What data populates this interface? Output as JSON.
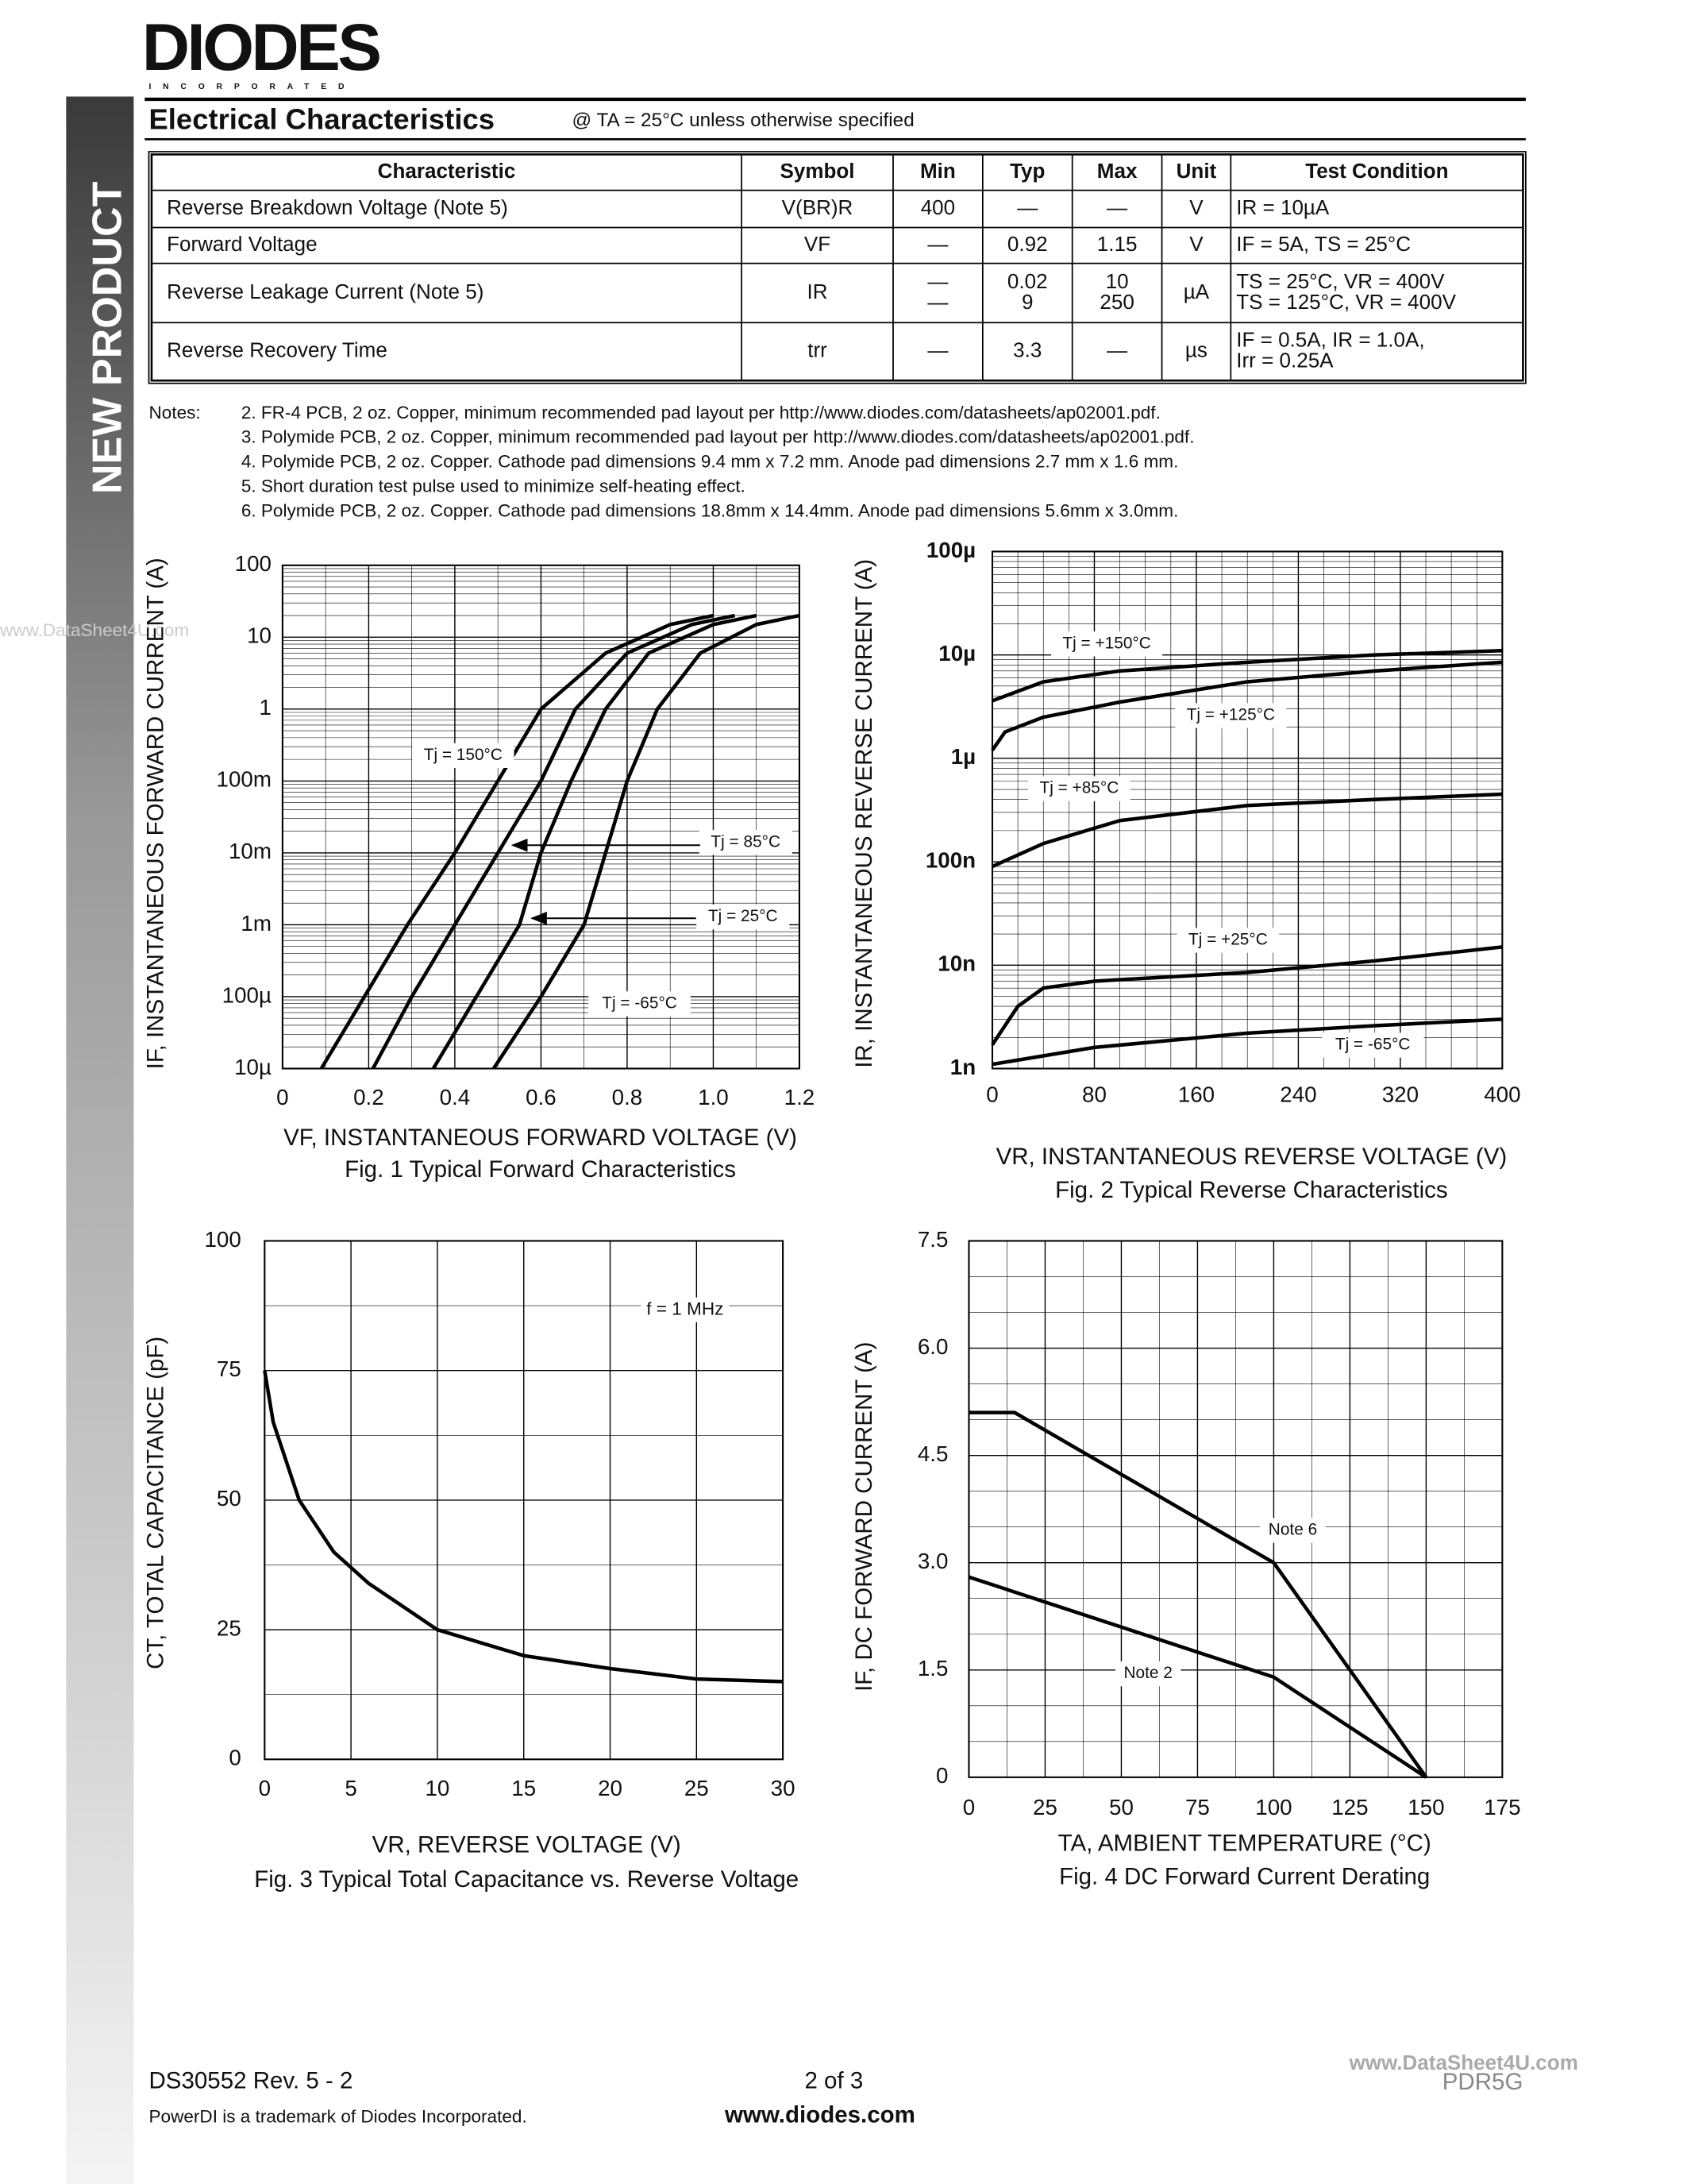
{
  "header": {
    "logo": "DIODES",
    "logo_sub": "INCORPORATED",
    "side_banner": "NEW PRODUCT"
  },
  "section": {
    "title": "Electrical Characteristics",
    "subtitle": "@ TA = 25°C unless otherwise specified"
  },
  "table": {
    "columns": [
      "Characteristic",
      "Symbol",
      "Min",
      "Typ",
      "Max",
      "Unit",
      "Test Condition"
    ],
    "rows": [
      [
        "Reverse Breakdown Voltage (Note 5)",
        "V(BR)R",
        "400",
        "—",
        "—",
        "V",
        "IR = 10µA"
      ],
      [
        "Forward Voltage",
        "VF",
        "—",
        "0.92",
        "1.15",
        "V",
        "IF = 5A, TS = 25°C"
      ],
      [
        "Reverse Leakage Current (Note 5)",
        "IR",
        [
          "—",
          "—"
        ],
        [
          "0.02",
          "9"
        ],
        [
          "10",
          "250"
        ],
        "µA",
        [
          "TS =  25°C, VR = 400V",
          "TS = 125°C, VR = 400V"
        ]
      ],
      [
        "Reverse Recovery Time",
        "trr",
        "—",
        "3.3",
        "—",
        "µs",
        [
          "IF = 0.5A, IR = 1.0A,",
          "Irr = 0.25A"
        ]
      ]
    ]
  },
  "notes": {
    "label": "Notes:",
    "items": [
      "2.  FR-4 PCB, 2 oz. Copper, minimum recommended pad layout per http://www.diodes.com/datasheets/ap02001.pdf.",
      "3.  Polymide PCB, 2 oz. Copper, minimum recommended pad layout per http://www.diodes.com/datasheets/ap02001.pdf.",
      "4.  Polymide PCB, 2 oz. Copper. Cathode pad dimensions 9.4 mm x 7.2 mm. Anode pad dimensions 2.7 mm x 1.6 mm.",
      "5.  Short duration test pulse used to minimize self-heating effect.",
      "6.  Polymide PCB, 2 oz. Copper.  Cathode pad dimensions 18.8mm x 14.4mm.  Anode pad dimensions 5.6mm x 3.0mm."
    ]
  },
  "chart_data": [
    {
      "type": "line",
      "title": "Fig. 1  Typical Forward Characteristics",
      "x_label": "VF, INSTANTANEOUS FORWARD VOLTAGE (V)",
      "y_label": "IF, INSTANTANEOUS FORWARD CURRENT (A)",
      "log_y": true,
      "grid": true,
      "xlim": [
        0,
        1.2
      ],
      "xticks": [
        0,
        0.2,
        0.4,
        0.6,
        0.8,
        {
          "value": 1,
          "label": "1.0"
        },
        1.2
      ],
      "ylim": [
        1e-05,
        100
      ],
      "yticks": [
        {
          "value": 1e-05,
          "label": "10µ"
        },
        {
          "value": 0.0001,
          "label": "100µ"
        },
        {
          "value": 0.001,
          "label": "1m"
        },
        {
          "value": 0.01,
          "label": "10m"
        },
        {
          "value": 0.1,
          "label": "100m"
        },
        1,
        10,
        100
      ],
      "series": [
        {
          "name": "Tj = 150°C",
          "color": "#000000",
          "x": [
            0.09,
            0.19,
            0.29,
            0.4,
            0.5,
            0.6,
            0.75,
            0.9,
            1.0
          ],
          "values": [
            1e-05,
            0.0001,
            0.001,
            0.01,
            0.1,
            1,
            6,
            15,
            20
          ]
        },
        {
          "name": "Tj = 85°C",
          "color": "#000000",
          "x": [
            0.21,
            0.3,
            0.4,
            0.5,
            0.6,
            0.68,
            0.8,
            0.95,
            1.05
          ],
          "values": [
            1e-05,
            0.0001,
            0.001,
            0.01,
            0.1,
            1,
            6,
            15,
            20
          ]
        },
        {
          "name": "Tj = 25°C",
          "color": "#000000",
          "x": [
            0.35,
            0.45,
            0.55,
            0.6,
            0.67,
            0.75,
            0.85,
            1.0,
            1.1
          ],
          "values": [
            1e-05,
            0.0001,
            0.001,
            0.01,
            0.1,
            1,
            6,
            15,
            20
          ]
        },
        {
          "name": "Tj = -65°C",
          "color": "#000000",
          "x": [
            0.49,
            0.6,
            0.7,
            0.75,
            0.8,
            0.87,
            0.97,
            1.1,
            1.2
          ],
          "values": [
            1e-05,
            0.0001,
            0.001,
            0.01,
            0.1,
            1,
            6,
            15,
            20
          ]
        }
      ]
    },
    {
      "type": "line",
      "title": "Fig. 2  Typical Reverse Characteristics",
      "x_label": "VR, INSTANTANEOUS REVERSE VOLTAGE (V)",
      "y_label": "IR, INSTANTANEOUS REVERSE CURRENT (A)",
      "log_y": true,
      "grid": true,
      "xlim": [
        0,
        400
      ],
      "xticks": [
        0,
        80,
        160,
        240,
        320,
        400
      ],
      "ylim": [
        1e-09,
        0.0001
      ],
      "yticks": [
        {
          "value": 1e-09,
          "label": "1n"
        },
        {
          "value": 1e-08,
          "label": "10n"
        },
        {
          "value": 1e-07,
          "label": "100n"
        },
        {
          "value": 1e-06,
          "label": "1µ"
        },
        {
          "value": 1e-05,
          "label": "10µ"
        },
        {
          "value": 0.0001,
          "label": "100µ"
        }
      ],
      "series": [
        {
          "name": "Tj = +150°C",
          "color": "#000000",
          "x": [
            0,
            40,
            100,
            200,
            300,
            400
          ],
          "values": [
            3.6e-06,
            5.5e-06,
            7e-06,
            8.5e-06,
            1e-05,
            1.1e-05
          ]
        },
        {
          "name": "Tj = +125°C",
          "color": "#000000",
          "x": [
            0,
            10,
            40,
            100,
            200,
            300,
            400
          ],
          "values": [
            1.2e-06,
            1.8e-06,
            2.5e-06,
            3.5e-06,
            5.5e-06,
            7e-06,
            8.5e-06
          ]
        },
        {
          "name": "Tj = +85°C",
          "color": "#000000",
          "x": [
            0,
            40,
            100,
            200,
            300,
            400
          ],
          "values": [
            9e-08,
            1.5e-07,
            2.5e-07,
            3.5e-07,
            4e-07,
            4.5e-07
          ]
        },
        {
          "name": "Tj = +25°C",
          "color": "#000000",
          "x": [
            0,
            20,
            40,
            80,
            200,
            300,
            400
          ],
          "values": [
            1.7e-09,
            4e-09,
            6e-09,
            7e-09,
            8.5e-09,
            1.1e-08,
            1.5e-08
          ]
        },
        {
          "name": "Tj = -65°C",
          "color": "#000000",
          "x": [
            0,
            80,
            200,
            300,
            400
          ],
          "values": [
            1.1e-09,
            1.6e-09,
            2.2e-09,
            2.6e-09,
            3e-09
          ]
        }
      ]
    },
    {
      "type": "line",
      "title": "Fig. 3  Typical Total Capacitance vs. Reverse Voltage",
      "x_label": "VR, REVERSE VOLTAGE (V)",
      "y_label": "CT, TOTAL CAPACITANCE (pF)",
      "annotation": "f = 1 MHz",
      "log_y": false,
      "grid": true,
      "xlim": [
        0,
        30
      ],
      "xticks": [
        0,
        5,
        10,
        15,
        20,
        25,
        30
      ],
      "ylim": [
        0,
        100
      ],
      "yticks": [
        0,
        25,
        50,
        75,
        100
      ],
      "series": [
        {
          "name": null,
          "color": "#000000",
          "x": [
            0,
            0.5,
            2,
            4,
            6,
            10,
            15,
            20,
            25,
            30
          ],
          "values": [
            75,
            65,
            50,
            40,
            34,
            25,
            20,
            17.5,
            15.5,
            15
          ]
        }
      ]
    },
    {
      "type": "line",
      "title": "Fig. 4  DC Forward Current Derating",
      "x_label": "TA, AMBIENT TEMPERATURE (°C)",
      "y_label": "IF, DC FORWARD CURRENT (A)",
      "log_y": false,
      "grid": true,
      "xlim": [
        0,
        175
      ],
      "xticks": [
        0,
        25,
        50,
        75,
        100,
        125,
        150,
        175
      ],
      "ylim": [
        0,
        7.5
      ],
      "yticks": [
        0,
        1.5,
        {
          "value": 3,
          "label": "3.0"
        },
        4.5,
        {
          "value": 6,
          "label": "6.0"
        },
        7.5
      ],
      "series": [
        {
          "name": "Note 6",
          "color": "#000000",
          "x": [
            0,
            15,
            100,
            150
          ],
          "values": [
            5.1,
            5.1,
            3,
            0
          ]
        },
        {
          "name": "Note 2",
          "color": "#000000",
          "x": [
            0,
            100,
            150
          ],
          "values": [
            2.8,
            1.4,
            0
          ]
        }
      ]
    }
  ],
  "footer": {
    "doc": "DS30552 Rev. 5 - 2",
    "page": "2 of 3",
    "url": "www.diodes.com",
    "trademark": "PowerDI is a trademark of Diodes Incorporated.",
    "part": "PDR5G",
    "watermark": "www.DataSheet4U.com"
  }
}
